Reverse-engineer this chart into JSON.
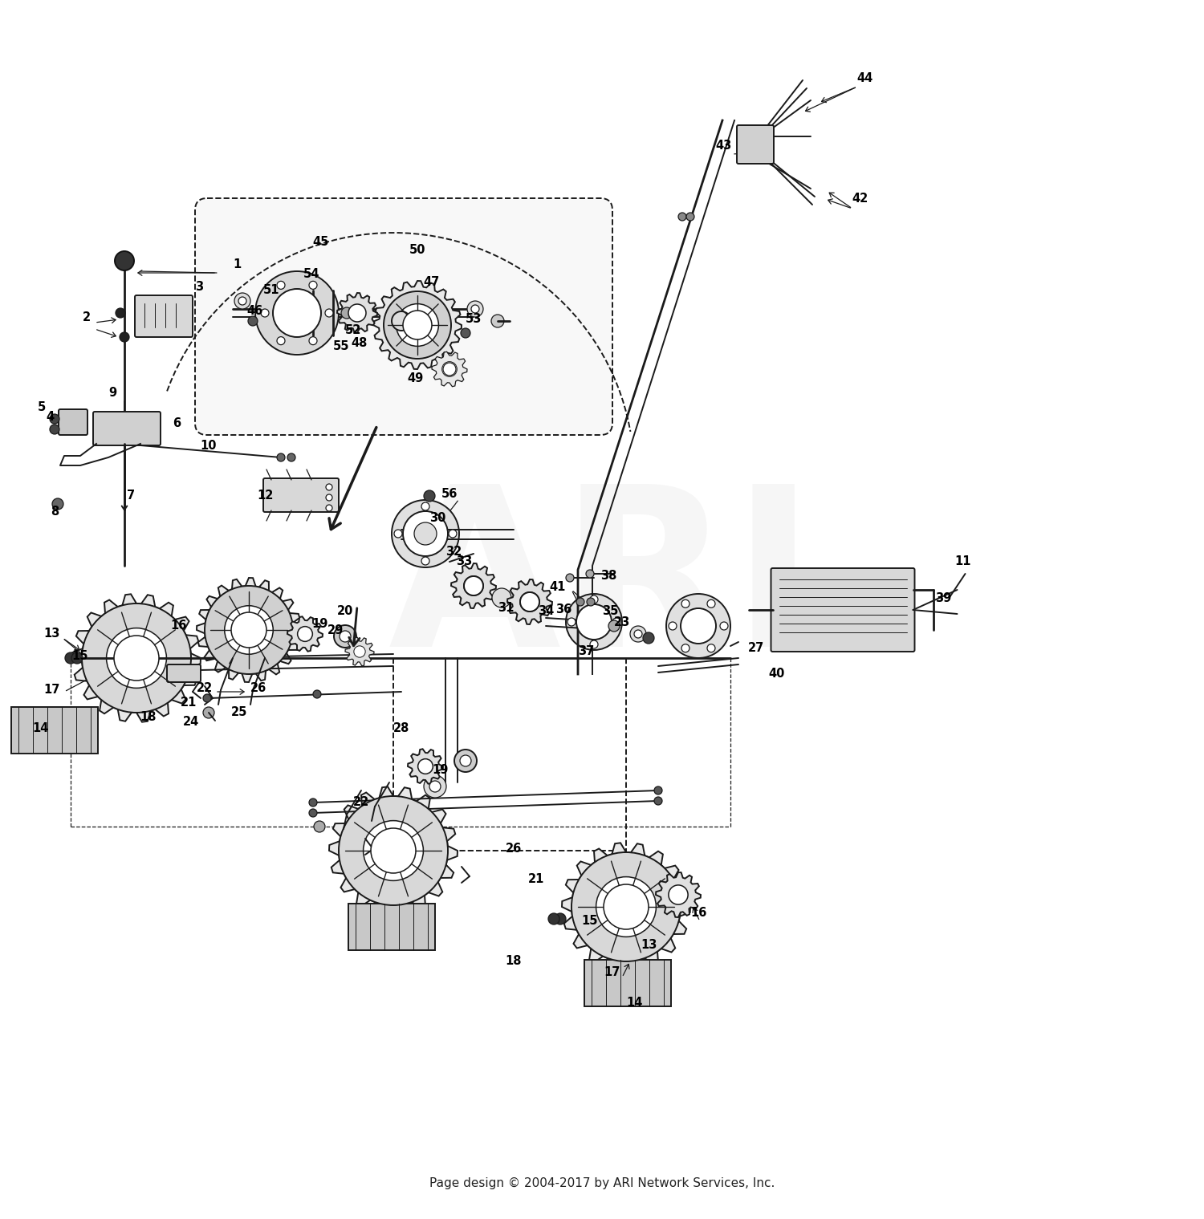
{
  "bg_color": "#ffffff",
  "fig_width": 15.0,
  "fig_height": 15.19,
  "dpi": 100,
  "copyright_text": "Page design © 2004-2017 by ARI Network Services, Inc.",
  "copyright_fontsize": 11,
  "watermark_text": "ARI",
  "watermark_alpha": 0.1,
  "watermark_fontsize": 200,
  "watermark_color": "#aaaaaa",
  "lw_main": 1.4,
  "lw_thin": 0.9,
  "lw_thick": 2.0,
  "draw_color": "#1a1a1a",
  "label_fontsize": 10.5
}
